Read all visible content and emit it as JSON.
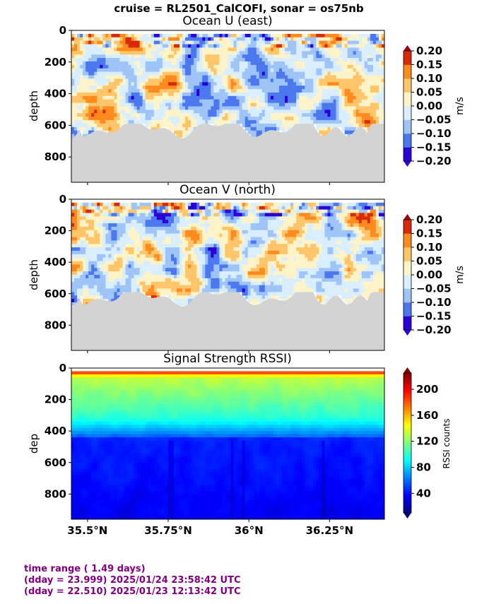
{
  "suptitle": "cruise = RL2501_CalCOFI,  sonar = os75nb",
  "chart_data": [
    {
      "type": "heatmap",
      "title": "Ocean U (east)",
      "ylabel": "depth",
      "ylim": [
        960,
        0
      ],
      "yticks": [
        "0",
        "200",
        "400",
        "600",
        "800"
      ],
      "xticks": [
        "35.5°N",
        "35.75°N",
        "36°N",
        "36.25°N"
      ],
      "xtick_values": [
        35.5,
        35.75,
        36.0,
        36.25
      ],
      "xlim": [
        35.45,
        36.42
      ],
      "colorbar": {
        "label": "m/s",
        "ticks": [
          "0.20",
          "0.15",
          "0.10",
          "0.05",
          "0.00",
          "−0.05",
          "−0.10",
          "−0.15",
          "−0.20"
        ],
        "levels": [
          "#2a00d6",
          "#4b78ee",
          "#9fc4f7",
          "#d9efff",
          "#fff3c8",
          "#ffc56a",
          "#ff8a1e",
          "#d82a0a"
        ],
        "extend_low": "#3000e0",
        "extend_high": "#a0001a"
      },
      "seafloor_color": "#d3d3d3"
    },
    {
      "type": "heatmap",
      "title": "Ocean V (north)",
      "ylabel": "depth",
      "ylim": [
        960,
        0
      ],
      "yticks": [
        "0",
        "200",
        "400",
        "600",
        "800"
      ],
      "xtick_values": [
        35.5,
        35.75,
        36.0,
        36.25
      ],
      "xlim": [
        35.45,
        36.42
      ],
      "colorbar": {
        "label": "m/s",
        "ticks": [
          "0.20",
          "0.15",
          "0.10",
          "0.05",
          "0.00",
          "−0.05",
          "−0.10",
          "−0.15",
          "−0.20"
        ]
      }
    },
    {
      "type": "heatmap",
      "title": "Signal Strength RSSI)",
      "ylabel": "dep",
      "ylim": [
        960,
        0
      ],
      "yticks": [
        "0",
        "200",
        "400",
        "600",
        "800"
      ],
      "xticks": [
        "35.5°N",
        "35.75°N",
        "36°N",
        "36.25°N"
      ],
      "xtick_values": [
        35.5,
        35.75,
        36.0,
        36.25
      ],
      "xlim": [
        35.45,
        36.42
      ],
      "colorbar": {
        "label": "RSSI counts",
        "ticks": [
          "200",
          "160",
          "120",
          "80",
          "40"
        ],
        "range": [
          10,
          225
        ]
      }
    }
  ],
  "footer": {
    "line1": "time range ( 1.49 days)",
    "line2": "(dday = 23.999) 2025/01/24 23:58:42 UTC",
    "line3": "(dday = 22.510) 2025/01/23 12:13:42 UTC"
  }
}
